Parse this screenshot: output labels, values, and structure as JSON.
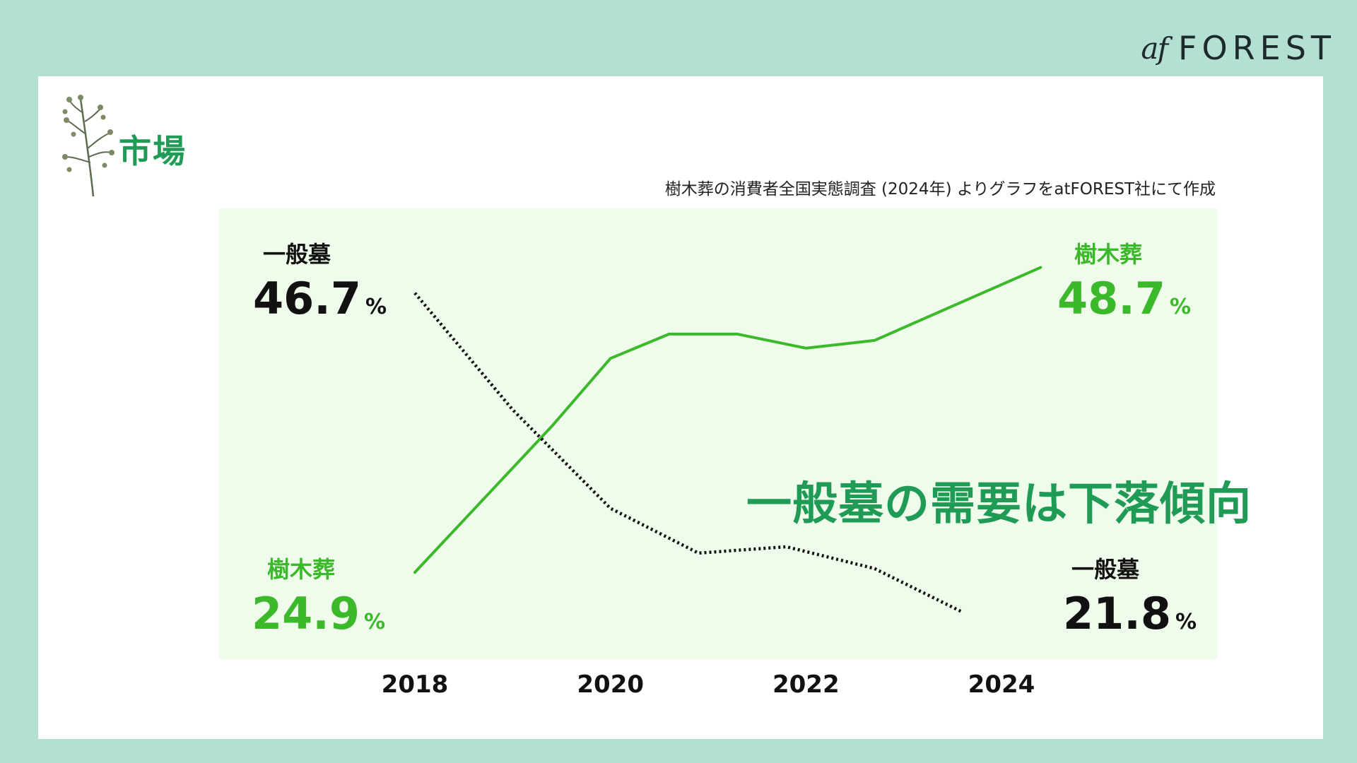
{
  "brand": {
    "logo_script": "af",
    "logo_word": "FOREST"
  },
  "section": {
    "title": "市場"
  },
  "source_note": "樹木葬の消費者全国実態調査 (2024年) よりグラフをatFOREST社にて作成",
  "headline": "一般墓の需要は下落傾向",
  "colors": {
    "page_background": "#b4e0d4",
    "card_background": "#ffffff",
    "plot_background": "#effcec",
    "accent_green": "#1f9b55",
    "series_green": "#3cb92a",
    "series_black": "#111111"
  },
  "callouts": {
    "general_start": {
      "name": "一般墓",
      "value": "46.7",
      "unit": "%"
    },
    "tree_start": {
      "name": "樹木葬",
      "value": "24.9",
      "unit": "%"
    },
    "tree_end": {
      "name": "樹木葬",
      "value": "48.7",
      "unit": "%"
    },
    "general_end": {
      "name": "一般墓",
      "value": "21.8",
      "unit": "%"
    }
  },
  "chart_data": {
    "type": "line",
    "title": "",
    "xlabel": "",
    "ylabel": "",
    "x_ticks": [
      "2018",
      "2020",
      "2022",
      "2024"
    ],
    "xlim": [
      2018,
      2024
    ],
    "ylim": [
      20,
      50
    ],
    "grid": false,
    "legend": "none",
    "series": [
      {
        "name": "樹木葬",
        "style": "solid",
        "color": "#3cb92a",
        "points": [
          [
            2018,
            24.9
          ],
          [
            2019.4,
            36.3
          ],
          [
            2020.0,
            41.6
          ],
          [
            2020.6,
            43.5
          ],
          [
            2021.3,
            43.5
          ],
          [
            2022.0,
            42.4
          ],
          [
            2022.7,
            43.0
          ],
          [
            2024.4,
            48.7
          ]
        ]
      },
      {
        "name": "一般墓",
        "style": "dotted",
        "color": "#111111",
        "points": [
          [
            2018,
            46.7
          ],
          [
            2019.0,
            37.6
          ],
          [
            2020.0,
            29.9
          ],
          [
            2020.9,
            26.4
          ],
          [
            2021.8,
            26.9
          ],
          [
            2022.7,
            25.2
          ],
          [
            2023.6,
            21.8
          ]
        ]
      }
    ]
  }
}
